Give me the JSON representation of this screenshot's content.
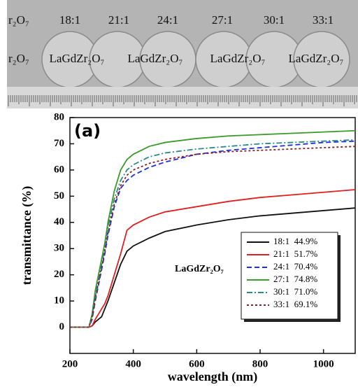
{
  "photo": {
    "top_labels": [
      "r₂O₇",
      "18:1",
      "21:1",
      "24:1",
      "27:1",
      "30:1",
      "33:1"
    ],
    "sample_labels": [
      "r₂O₇",
      "LaGdZr₂O₇",
      "LaGdZr₂O₇",
      "LaGdZr₂O₇",
      "LaGdZr₂O₇"
    ]
  },
  "chart_data": {
    "type": "line",
    "xlabel": "wavelength (nm)",
    "ylabel": "transmittance (%)",
    "annotations": [
      "(a)",
      "LaGdZr₂O₇"
    ],
    "x": [
      200,
      260,
      270,
      280,
      290,
      300,
      310,
      320,
      340,
      360,
      380,
      400,
      450,
      500,
      600,
      700,
      800,
      900,
      1000,
      1100
    ],
    "series": [
      {
        "name": "18:1  44.9%",
        "color": "#111111",
        "dash": "none",
        "values": [
          0,
          0,
          0.5,
          2,
          3,
          4,
          7,
          10,
          17,
          24,
          29,
          31,
          34,
          36.5,
          39,
          41,
          42.5,
          43.5,
          44.5,
          45.5
        ]
      },
      {
        "name": "21:1  51.7%",
        "color": "#e02020",
        "dash": "none",
        "values": [
          0,
          0,
          0.5,
          3,
          5,
          7,
          9,
          12,
          20,
          28,
          37,
          39,
          42,
          44,
          46,
          48,
          49.5,
          50.5,
          51.5,
          52.5
        ]
      },
      {
        "name": "24:1  70.4%",
        "color": "#2030e0",
        "dash": "7,4",
        "values": [
          0,
          0,
          3,
          10,
          16,
          22,
          28,
          35,
          46,
          53,
          56,
          58,
          61,
          63,
          66,
          67.5,
          68.5,
          69.5,
          70.5,
          71
        ]
      },
      {
        "name": "27:1  74.8%",
        "color": "#3a9a2a",
        "dash": "none",
        "values": [
          0,
          0,
          5,
          14,
          20,
          26,
          32,
          40,
          52,
          60,
          64,
          66,
          69,
          70.5,
          72,
          73,
          73.5,
          74,
          74.5,
          75
        ]
      },
      {
        "name": "30:1  71.0%",
        "color": "#2a8a8a",
        "dash": "8,3,2,3",
        "values": [
          0,
          0,
          4,
          12,
          18,
          24,
          30,
          38,
          49,
          56,
          60,
          62,
          65,
          66.5,
          68,
          69,
          70,
          70.5,
          71,
          71.5
        ]
      },
      {
        "name": "33:1  69.1%",
        "color": "#8a2020",
        "dash": "3,3",
        "values": [
          0,
          0,
          4,
          11,
          17,
          23,
          29,
          36,
          47,
          54,
          58,
          60,
          62.5,
          64,
          66,
          67,
          67.5,
          68,
          68.5,
          69
        ]
      }
    ],
    "xlim": [
      200,
      1100
    ],
    "xticks": [
      200,
      400,
      600,
      800,
      1000
    ],
    "ylim": [
      -10,
      80
    ],
    "yticks": [
      0,
      10,
      20,
      30,
      40,
      50,
      60,
      70,
      80
    ]
  }
}
